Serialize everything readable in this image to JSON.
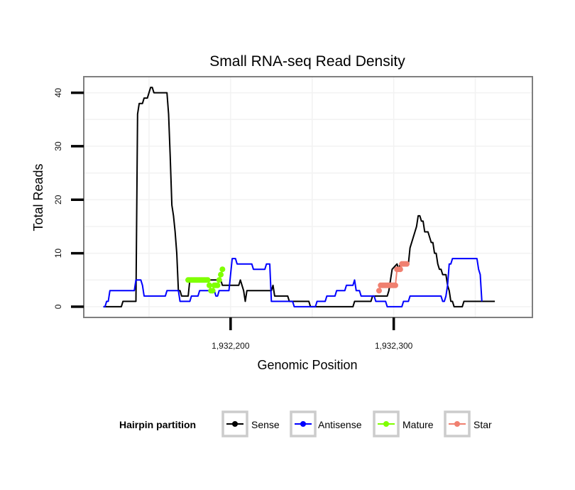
{
  "chart_data": {
    "type": "line",
    "title": "Small RNA-seq Read Density",
    "xlabel": "Genomic Position",
    "ylabel": "Total Reads",
    "xlim": [
      1932110,
      1932385
    ],
    "ylim": [
      -2,
      43
    ],
    "x_ticks": [
      1932200,
      1932300
    ],
    "x_tick_labels": [
      "1,932,200",
      "1,932,300"
    ],
    "y_ticks": [
      0,
      10,
      20,
      30,
      40
    ],
    "y_tick_labels": [
      "0",
      "10",
      "20",
      "30",
      "40"
    ],
    "grid": true,
    "legend_position": "bottom",
    "legend_title": "Hairpin partition",
    "series": [
      {
        "name": "Sense",
        "color": "#000000",
        "style": "line",
        "points": [
          [
            1932122,
            0
          ],
          [
            1932133,
            0
          ],
          [
            1932134,
            1
          ],
          [
            1932142,
            1
          ],
          [
            1932143,
            36
          ],
          [
            1932144,
            38
          ],
          [
            1932146,
            38
          ],
          [
            1932147,
            39
          ],
          [
            1932149,
            39
          ],
          [
            1932150,
            40
          ],
          [
            1932151,
            41
          ],
          [
            1932152,
            41
          ],
          [
            1932153,
            40
          ],
          [
            1932161,
            40
          ],
          [
            1932162,
            36
          ],
          [
            1932163,
            28
          ],
          [
            1932164,
            19
          ],
          [
            1932165,
            17
          ],
          [
            1932166,
            14
          ],
          [
            1932167,
            10
          ],
          [
            1932168,
            3
          ],
          [
            1932169,
            3
          ],
          [
            1932170,
            2
          ],
          [
            1932174,
            2
          ],
          [
            1932175,
            5
          ],
          [
            1932194,
            5
          ],
          [
            1932195,
            4
          ],
          [
            1932205,
            4
          ],
          [
            1932206,
            5
          ],
          [
            1932207,
            4
          ],
          [
            1932208,
            3
          ],
          [
            1932209,
            1
          ],
          [
            1932210,
            3
          ],
          [
            1932225,
            3
          ],
          [
            1932226,
            4
          ],
          [
            1932227,
            2
          ],
          [
            1932235,
            2
          ],
          [
            1932236,
            1
          ],
          [
            1932248,
            1
          ],
          [
            1932249,
            0
          ],
          [
            1932275,
            0
          ],
          [
            1932276,
            1
          ],
          [
            1932286,
            1
          ],
          [
            1932287,
            2
          ],
          [
            1932296,
            2
          ],
          [
            1932297,
            3
          ],
          [
            1932299,
            7
          ],
          [
            1932302,
            8
          ],
          [
            1932303,
            7
          ],
          [
            1932304,
            8
          ],
          [
            1932309,
            8
          ],
          [
            1932310,
            11
          ],
          [
            1932313,
            14
          ],
          [
            1932314,
            15
          ],
          [
            1932315,
            17
          ],
          [
            1932316,
            17
          ],
          [
            1932317,
            16
          ],
          [
            1932318,
            16
          ],
          [
            1932319,
            14
          ],
          [
            1932321,
            14
          ],
          [
            1932322,
            13
          ],
          [
            1932323,
            12
          ],
          [
            1932324,
            12
          ],
          [
            1932325,
            10
          ],
          [
            1932326,
            10
          ],
          [
            1932327,
            8
          ],
          [
            1932328,
            7
          ],
          [
            1932329,
            7
          ],
          [
            1932330,
            6
          ],
          [
            1932332,
            6
          ],
          [
            1932333,
            4
          ],
          [
            1932334,
            3
          ],
          [
            1932335,
            1
          ],
          [
            1932336,
            1
          ],
          [
            1932337,
            0
          ],
          [
            1932342,
            0
          ],
          [
            1932343,
            1
          ],
          [
            1932362,
            1
          ]
        ]
      },
      {
        "name": "Antisense",
        "color": "#0000ff",
        "style": "line",
        "points": [
          [
            1932122,
            0
          ],
          [
            1932123,
            0
          ],
          [
            1932124,
            1
          ],
          [
            1932125,
            1
          ],
          [
            1932126,
            3
          ],
          [
            1932141,
            3
          ],
          [
            1932142,
            5
          ],
          [
            1932145,
            5
          ],
          [
            1932146,
            4
          ],
          [
            1932147,
            2
          ],
          [
            1932160,
            2
          ],
          [
            1932161,
            3
          ],
          [
            1932168,
            3
          ],
          [
            1932169,
            1
          ],
          [
            1932175,
            1
          ],
          [
            1932176,
            2
          ],
          [
            1932180,
            2
          ],
          [
            1932181,
            3
          ],
          [
            1932190,
            3
          ],
          [
            1932191,
            2
          ],
          [
            1932192,
            2
          ],
          [
            1932193,
            3
          ],
          [
            1932199,
            3
          ],
          [
            1932200,
            6
          ],
          [
            1932201,
            9
          ],
          [
            1932203,
            9
          ],
          [
            1932204,
            8
          ],
          [
            1932213,
            8
          ],
          [
            1932214,
            7
          ],
          [
            1932221,
            7
          ],
          [
            1932222,
            8
          ],
          [
            1932224,
            8
          ],
          [
            1932225,
            1
          ],
          [
            1932238,
            1
          ],
          [
            1932239,
            0
          ],
          [
            1932252,
            0
          ],
          [
            1932253,
            1
          ],
          [
            1932258,
            1
          ],
          [
            1932259,
            2
          ],
          [
            1932264,
            2
          ],
          [
            1932265,
            3
          ],
          [
            1932270,
            3
          ],
          [
            1932271,
            4
          ],
          [
            1932275,
            4
          ],
          [
            1932276,
            5
          ],
          [
            1932277,
            3
          ],
          [
            1932279,
            3
          ],
          [
            1932280,
            2
          ],
          [
            1932288,
            2
          ],
          [
            1932289,
            1
          ],
          [
            1932295,
            1
          ],
          [
            1932296,
            0
          ],
          [
            1932305,
            0
          ],
          [
            1932306,
            1
          ],
          [
            1932309,
            1
          ],
          [
            1932310,
            2
          ],
          [
            1932329,
            2
          ],
          [
            1932330,
            1
          ],
          [
            1932331,
            1
          ],
          [
            1932332,
            2
          ],
          [
            1932333,
            4
          ],
          [
            1932334,
            8
          ],
          [
            1932335,
            8
          ],
          [
            1932336,
            9
          ],
          [
            1932351,
            9
          ],
          [
            1932352,
            7
          ],
          [
            1932353,
            6
          ],
          [
            1932354,
            1
          ]
        ]
      },
      {
        "name": "Mature",
        "color": "#7fff00",
        "style": "line+points",
        "points": [
          [
            1932174,
            5
          ],
          [
            1932175,
            5
          ],
          [
            1932176,
            5
          ],
          [
            1932177,
            5
          ],
          [
            1932178,
            5
          ],
          [
            1932179,
            5
          ],
          [
            1932180,
            5
          ],
          [
            1932181,
            5
          ],
          [
            1932182,
            5
          ],
          [
            1932183,
            5
          ],
          [
            1932184,
            5
          ],
          [
            1932185,
            5
          ],
          [
            1932186,
            5
          ],
          [
            1932187,
            4
          ],
          [
            1932188,
            3
          ],
          [
            1932189,
            3
          ],
          [
            1932190,
            4
          ],
          [
            1932191,
            4
          ],
          [
            1932192,
            4
          ],
          [
            1932193,
            5
          ],
          [
            1932194,
            6
          ],
          [
            1932195,
            7
          ]
        ]
      },
      {
        "name": "Star",
        "color": "#f08070",
        "style": "line+points",
        "points": [
          [
            1932291,
            3
          ],
          [
            1932292,
            4
          ],
          [
            1932293,
            4
          ],
          [
            1932294,
            4
          ],
          [
            1932295,
            4
          ],
          [
            1932296,
            4
          ],
          [
            1932297,
            4
          ],
          [
            1932298,
            4
          ],
          [
            1932299,
            4
          ],
          [
            1932300,
            4
          ],
          [
            1932301,
            4
          ],
          [
            1932302,
            7
          ],
          [
            1932303,
            7
          ],
          [
            1932304,
            7
          ],
          [
            1932305,
            8
          ],
          [
            1932306,
            8
          ],
          [
            1932307,
            8
          ],
          [
            1932308,
            8
          ]
        ]
      }
    ]
  }
}
